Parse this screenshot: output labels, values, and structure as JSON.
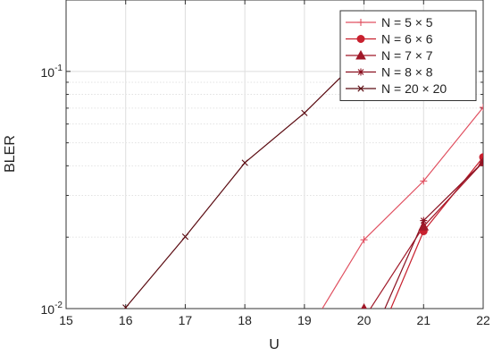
{
  "chart_data": {
    "type": "line",
    "title": "",
    "xlabel": "U",
    "ylabel": "BLER",
    "xlim": [
      15,
      22
    ],
    "ylim": [
      0.01,
      0.2
    ],
    "y_scale": "log",
    "grid": true,
    "legend_position": "top-right",
    "x_ticks": [
      "15",
      "16",
      "17",
      "18",
      "19",
      "20",
      "21",
      "22"
    ],
    "y_tick_labels": [
      {
        "base": "10",
        "exp": "-2",
        "value": 0.01
      },
      {
        "base": "10",
        "exp": "-1",
        "value": 0.1
      }
    ],
    "series": [
      {
        "name": "N = 5 × 5",
        "color": "#e05060",
        "marker": "plus",
        "x": [
          19.3,
          20,
          21,
          22
        ],
        "y": [
          0.01,
          0.0195,
          0.0345,
          0.0705
        ]
      },
      {
        "name": "N = 6 × 6",
        "color": "#c8202e",
        "marker": "circle",
        "x": [
          20.45,
          21,
          22
        ],
        "y": [
          0.01,
          0.0212,
          0.0435
        ]
      },
      {
        "name": "N = 7 × 7",
        "color": "#a01828",
        "marker": "triangle",
        "x": [
          20,
          20.05,
          21,
          22
        ],
        "y": [
          0.01,
          0.0095,
          0.0222,
          0.0415
        ]
      },
      {
        "name": "N = 8 × 8",
        "color": "#8a1020",
        "marker": "star",
        "x": [
          20.35,
          21,
          22
        ],
        "y": [
          0.01,
          0.0235,
          0.0415
        ]
      },
      {
        "name": "N = 20 × 20",
        "color": "#5a0a10",
        "marker": "x",
        "x": [
          16,
          17,
          18,
          19,
          20
        ],
        "y": [
          0.0101,
          0.0201,
          0.0412,
          0.0668,
          0.118
        ]
      }
    ]
  }
}
